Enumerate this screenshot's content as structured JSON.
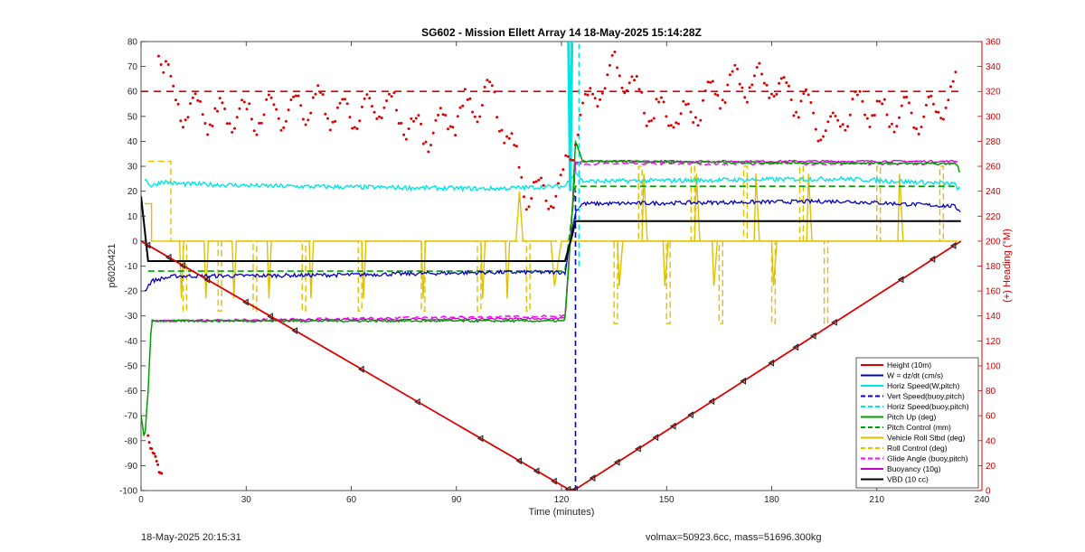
{
  "chart_data": {
    "type": "line",
    "title": "SG602 - Mission Ellett Array 14 18-May-2025 15:14:28Z",
    "xlabel": "Time (minutes)",
    "ylabel_left": "p6020421",
    "ylabel_right": "(+) Heading (°M)",
    "xlim": [
      0,
      240
    ],
    "ylim_left": [
      -100,
      80
    ],
    "ylim_right": [
      0,
      360
    ],
    "x_ticks": [
      0,
      30,
      60,
      90,
      120,
      150,
      180,
      210,
      240
    ],
    "y_ticks_left": [
      -100,
      -90,
      -80,
      -70,
      -60,
      -50,
      -40,
      -30,
      -20,
      -10,
      0,
      10,
      20,
      30,
      40,
      50,
      60,
      70,
      80
    ],
    "y_ticks_right": [
      0,
      20,
      40,
      60,
      80,
      100,
      120,
      140,
      160,
      180,
      200,
      220,
      240,
      260,
      280,
      300,
      320,
      340,
      360
    ],
    "legend_position": "bottom-right",
    "legend": [
      {
        "label": "Height (10m)",
        "color": "#dd0000",
        "dash": "solid"
      },
      {
        "label": "W = dz/dt (cm/s)",
        "color": "#0000bb",
        "dash": "solid"
      },
      {
        "label": "Horiz Speed(W,pitch)",
        "color": "#00e5e5",
        "dash": "solid"
      },
      {
        "label": "Vert Speed(buoy,pitch)",
        "color": "#0000bb",
        "dash": "dashed"
      },
      {
        "label": "Horiz Speed(buoy,pitch)",
        "color": "#00e5e5",
        "dash": "dashed"
      },
      {
        "label": "Pitch Up (deg)",
        "color": "#00a000",
        "dash": "solid"
      },
      {
        "label": "Pitch Control (mm)",
        "color": "#00a000",
        "dash": "dashed"
      },
      {
        "label": "Vehicle Roll Stbd (deg)",
        "color": "#e0c000",
        "dash": "solid"
      },
      {
        "label": "Roll Control (deg)",
        "color": "#e0c000",
        "dash": "dashed"
      },
      {
        "label": "Glide Angle (buoy,pitch)",
        "color": "#ff00ff",
        "dash": "dashed"
      },
      {
        "label": "Buoyancy (10g)",
        "color": "#cc00cc",
        "dash": "solid"
      },
      {
        "label": "VBD (10 cc)",
        "color": "#000000",
        "dash": "solid"
      }
    ],
    "series": [
      {
        "name": "Height (10m)",
        "x": [
          0,
          122,
          124,
          234
        ],
        "y": [
          0,
          -99.5,
          -99.5,
          0
        ]
      },
      {
        "name": "W = dz/dt (cm/s)",
        "x": [
          1,
          3,
          6,
          10,
          20,
          60,
          100,
          121,
          124,
          126,
          130,
          200,
          232,
          234
        ],
        "y": [
          -20,
          -16,
          -15,
          -14,
          -14,
          -13.5,
          -12.5,
          -12.5,
          12,
          15,
          15,
          16,
          14,
          12
        ]
      },
      {
        "name": "Horiz Speed(W,pitch)",
        "x": [
          1,
          3,
          6,
          10,
          40,
          100,
          121,
          124,
          126,
          130,
          200,
          232,
          234
        ],
        "y": [
          25,
          22,
          24,
          23,
          22,
          21,
          22,
          28,
          24,
          24,
          25,
          23,
          20
        ]
      },
      {
        "name": "Vert Speed(buoy,pitch)",
        "x": [
          124,
          124.1
        ],
        "y": [
          -100,
          20
        ]
      },
      {
        "name": "Horiz Speed(buoy,pitch)",
        "x": [
          125,
          125.1
        ],
        "y": [
          -10,
          80
        ]
      },
      {
        "name": "Pitch Up (deg)",
        "x": [
          0,
          1,
          2,
          3,
          5,
          10,
          121,
          123,
          124,
          126,
          233,
          234
        ],
        "y": [
          -70,
          -80,
          -60,
          -32,
          -32,
          -32,
          -32,
          10,
          40,
          32,
          31,
          25
        ]
      },
      {
        "name": "Pitch Control (mm)",
        "x": [
          2,
          5,
          121,
          124,
          233
        ],
        "y": [
          -12,
          -12,
          -12,
          22,
          22
        ]
      },
      {
        "name": "Vehicle Roll Stbd (deg)",
        "x": [
          1,
          2,
          3,
          12,
          13,
          14,
          23,
          24,
          25,
          120,
          124,
          233
        ],
        "y": [
          15,
          15,
          0,
          0,
          -25,
          0,
          0,
          -25,
          0,
          0,
          0,
          0
        ]
      },
      {
        "name": "Roll Control (deg)",
        "x": [
          2,
          8,
          9,
          120,
          124,
          233
        ],
        "y": [
          32,
          32,
          0,
          0,
          0,
          0
        ]
      },
      {
        "name": "Glide Angle (buoy,pitch)",
        "x": [
          3,
          121,
          124,
          233
        ],
        "y": [
          -32,
          -30,
          31,
          31
        ]
      },
      {
        "name": "Buoyancy (10g)",
        "x": [
          3,
          121,
          124,
          233
        ],
        "y": [
          -32,
          -31,
          32,
          32
        ]
      },
      {
        "name": "VBD (10 cc)",
        "x": [
          0,
          2,
          121,
          123,
          124,
          234
        ],
        "y": [
          18,
          -8,
          -8,
          2,
          8,
          8
        ]
      },
      {
        "name": "Heading (°M)",
        "axis": "right",
        "x": [
          5,
          10,
          20,
          30,
          40,
          50,
          60,
          70,
          80,
          90,
          100,
          110,
          120,
          125,
          135,
          145,
          155,
          165,
          175,
          185,
          195,
          205,
          215,
          225,
          233
        ],
        "y": [
          360,
          310,
          300,
          300,
          305,
          310,
          300,
          310,
          285,
          300,
          320,
          240,
          240,
          300,
          340,
          305,
          300,
          320,
          330,
          320,
          290,
          310,
          300,
          300,
          325
        ]
      },
      {
        "name": "Heading reference",
        "axis": "right",
        "x": [
          0,
          234
        ],
        "y": [
          320,
          320
        ]
      }
    ]
  },
  "footer": {
    "timestamp": "18-May-2025 20:15:31",
    "mass_info": "volmax=50923.6cc, mass=51696.300kg"
  },
  "colors": {
    "height": "#dd0000",
    "w": "#0000bb",
    "horiz": "#00e5e5",
    "pitch": "#00a000",
    "roll": "#e0c000",
    "glide": "#ff00ff",
    "buoy": "#cc00cc",
    "vbd": "#000000",
    "heading": "#dd0000"
  }
}
